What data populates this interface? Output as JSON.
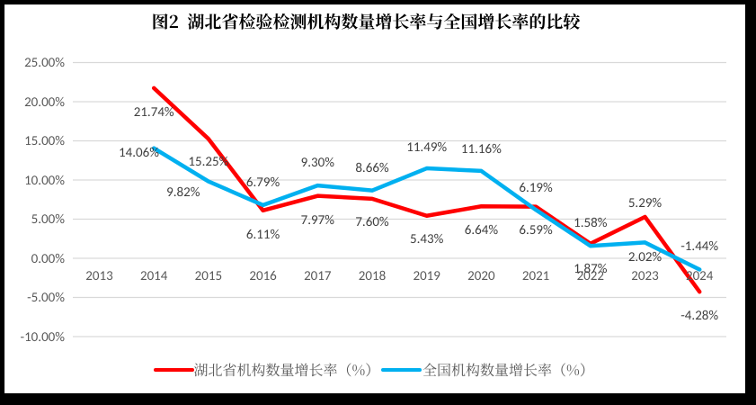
{
  "page": {
    "background_color": "#000000",
    "chart_background_color": "#FFFFFF"
  },
  "chart_data": {
    "type": "line",
    "title": "图2  湖北省检验检测机构数量增长率与全国增长率的比较",
    "x_categories": [
      "2013",
      "2014",
      "2015",
      "2016",
      "2017",
      "2018",
      "2019",
      "2020",
      "2021",
      "2022",
      "2023",
      "2024"
    ],
    "y_axis": {
      "min": -10,
      "max": 25,
      "step": 5,
      "tick_labels": [
        "25.00%",
        "20.00%",
        "15.00%",
        "10.00%",
        "5.00%",
        "0.00%",
        "-5.00%",
        "-10.00%"
      ]
    },
    "grid": true,
    "legend_position": "bottom",
    "series": [
      {
        "name": "湖北省机构数量增长率（%）",
        "color": "#FF0000",
        "values": [
          null,
          21.74,
          15.25,
          6.11,
          7.97,
          7.6,
          5.43,
          6.64,
          6.59,
          1.87,
          5.29,
          -4.28
        ],
        "data_labels": [
          "",
          "21.74%",
          "15.25%",
          "6.11%",
          "7.97%",
          "7.60%",
          "5.43%",
          "6.64%",
          "6.59%",
          "1.87%",
          "5.29%",
          "-4.28%"
        ],
        "label_offsets": [
          [
            0,
            0
          ],
          [
            0,
            26.4
          ],
          [
            0,
            25
          ],
          [
            0,
            25.7
          ],
          [
            0,
            26.3
          ],
          [
            0,
            25.1
          ],
          [
            0,
            25.7
          ],
          [
            0,
            25.7
          ],
          [
            0,
            25.3
          ],
          [
            0,
            26.8
          ],
          [
            0,
            -16.1
          ],
          [
            0,
            26
          ]
        ]
      },
      {
        "name": "全国机构数量增长率（%）",
        "color": "#00B0F0",
        "values": [
          null,
          14.06,
          9.82,
          6.79,
          9.3,
          8.66,
          11.49,
          11.16,
          6.19,
          1.58,
          2.02,
          -1.44
        ],
        "data_labels": [
          "",
          "14.06%",
          "9.82%",
          "6.79%",
          "9.30%",
          "8.66%",
          "11.49%",
          "11.16%",
          "6.19%",
          "1.58%",
          "2.02%",
          "-1.44%"
        ],
        "label_offsets": [
          [
            0,
            0
          ],
          [
            -16.7,
            4.4
          ],
          [
            -28.1,
            11.5
          ],
          [
            0,
            -26.1
          ],
          [
            0,
            -26.1
          ],
          [
            0,
            -25.7
          ],
          [
            0,
            -24.5
          ],
          [
            0,
            -25
          ],
          [
            0,
            -25.5
          ],
          [
            0,
            -26
          ],
          [
            0,
            15.1
          ],
          [
            0,
            -26.1
          ]
        ]
      }
    ],
    "colors": {
      "gridline": "#D9D9D9",
      "axis_text": "#595959",
      "data_label_text": "#404040",
      "title_text": "#000000",
      "legend_text": "#595959"
    }
  }
}
